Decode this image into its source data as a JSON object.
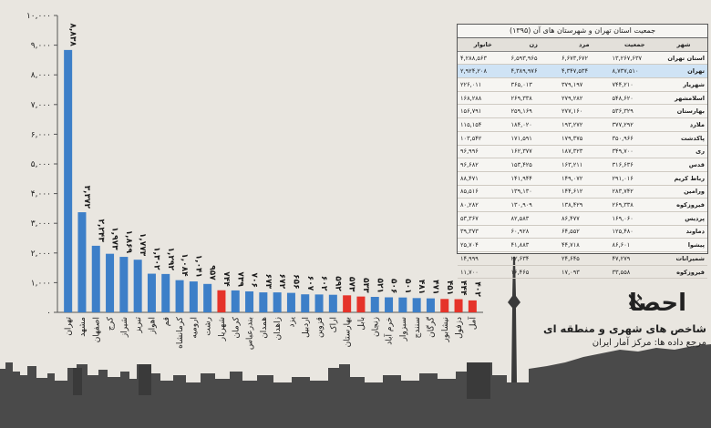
{
  "chart_data": {
    "type": "bar",
    "categories": [
      "تهران",
      "مشهد",
      "اصفهان",
      "کرج",
      "شیراز",
      "تبریز",
      "اهواز",
      "قم",
      "کرمانشاه",
      "ارومیه",
      "رشت",
      "شهریار",
      "کرمان",
      "بندرعباس",
      "همدان",
      "زاهدان",
      "یزد",
      "اردبیل",
      "قزوین",
      "اراک",
      "بهارستان",
      "بابل",
      "زنجان",
      "خرم آباد",
      "سبزوار",
      "سنندج",
      "گرگان",
      "نیشابور",
      "دزفول",
      "آمل"
    ],
    "values": [
      8838,
      3372,
      2243,
      1973,
      1869,
      1773,
      1302,
      1292,
      1084,
      1041,
      957,
      744,
      739,
      706,
      673,
      672,
      656,
      607,
      602,
      592,
      573,
      533,
      521,
      506,
      501,
      481,
      471,
      451,
      444,
      402
    ],
    "value_labels": [
      "۸,۸۳۸",
      "۳,۳۷۲",
      "۲,۲۴۳",
      "۱,۹۷۳",
      "۱,۸۶۹",
      "۱,۷۷۳",
      "۱,۳۰۲",
      "۱,۲۹۲",
      "۱,۰۸۴",
      "۱,۰۴۱",
      "۹۵۷",
      "۷۴۴",
      "۷۳۹",
      "۷۰۶",
      "۶۷۳",
      "۶۷۲",
      "۶۵۶",
      "۶۰۷",
      "۶۰۲",
      "۵۹۲",
      "۵۷۳",
      "۵۳۳",
      "۵۲۱",
      "۵۰۶",
      "۵۰۱",
      "۴۸۱",
      "۴۷۱",
      "۴۵۱",
      "۴۴۴",
      "۴۰۲"
    ],
    "bar_colors": [
      "#3d7fc8",
      "#3d7fc8",
      "#3d7fc8",
      "#3d7fc8",
      "#3d7fc8",
      "#3d7fc8",
      "#3d7fc8",
      "#3d7fc8",
      "#3d7fc8",
      "#3d7fc8",
      "#3d7fc8",
      "#e5332a",
      "#3d7fc8",
      "#3d7fc8",
      "#3d7fc8",
      "#3d7fc8",
      "#3d7fc8",
      "#3d7fc8",
      "#3d7fc8",
      "#3d7fc8",
      "#e5332a",
      "#e5332a",
      "#3d7fc8",
      "#3d7fc8",
      "#3d7fc8",
      "#3d7fc8",
      "#3d7fc8",
      "#e5332a",
      "#e5332a",
      "#e5332a"
    ],
    "yticks": [
      0,
      1000,
      2000,
      3000,
      4000,
      5000,
      6000,
      7000,
      8000,
      9000,
      10000
    ],
    "ytick_labels": [
      "۰",
      "۱,۰۰۰",
      "۲,۰۰۰",
      "۳,۰۰۰",
      "۴,۰۰۰",
      "۵,۰۰۰",
      "۶,۰۰۰",
      "۷,۰۰۰",
      "۸,۰۰۰",
      "۹,۰۰۰",
      "۱۰,۰۰۰"
    ],
    "ylim": [
      0,
      10000
    ],
    "grid": false
  },
  "table": {
    "title": "جمعیت استان تهران و شهرستان های آن (۱۳۹۵)",
    "headers": [
      "شهر",
      "جمعیت",
      "مرد",
      "زن",
      "خانوار"
    ],
    "rows": [
      [
        "استان تهران",
        "۱۳,۲۶۷,۶۳۷",
        "۶,۶۷۳,۶۷۲",
        "۶,۵۹۳,۹۶۵",
        "۴,۲۸۸,۵۶۳"
      ],
      [
        "تهران",
        "۸,۷۳۷,۵۱۰",
        "۴,۳۴۷,۵۳۴",
        "۴,۳۸۹,۹۷۶",
        "۲,۹۲۴,۲۰۸"
      ],
      [
        "شهریار",
        "۷۴۴,۲۱۰",
        "۳۷۹,۱۹۷",
        "۳۶۵,۰۱۳",
        "۲۲۶,۰۱۱"
      ],
      [
        "اسلامشهر",
        "۵۴۸,۶۲۰",
        "۲۷۹,۲۸۲",
        "۲۶۹,۳۳۸",
        "۱۶۸,۲۸۸"
      ],
      [
        "بهارستان",
        "۵۳۶,۳۲۹",
        "۲۷۷,۱۶۰",
        "۲۵۹,۱۶۹",
        "۱۵۶,۷۹۱"
      ],
      [
        "ملارد",
        "۳۷۷,۲۹۲",
        "۱۹۳,۲۷۲",
        "۱۸۴,۰۲۰",
        "۱۱۵,۱۵۴"
      ],
      [
        "پاکدشت",
        "۳۵۰,۹۶۶",
        "۱۷۹,۳۷۵",
        "۱۷۱,۵۹۱",
        "۱۰۳,۵۴۲"
      ],
      [
        "ری",
        "۳۴۹,۷۰۰",
        "۱۸۷,۳۲۳",
        "۱۶۲,۳۷۷",
        "۹۶,۹۹۶"
      ],
      [
        "قدس",
        "۳۱۶,۶۳۶",
        "۱۶۳,۲۱۱",
        "۱۵۳,۴۲۵",
        "۹۶,۶۸۲"
      ],
      [
        "رباط کریم",
        "۲۹۱,۰۱۶",
        "۱۴۹,۰۷۲",
        "۱۴۱,۹۴۴",
        "۸۸,۴۷۱"
      ],
      [
        "ورامین",
        "۲۸۳,۷۴۲",
        "۱۴۴,۶۱۲",
        "۱۳۹,۱۳۰",
        "۸۵,۵۱۶"
      ],
      [
        "فیروزکوه",
        "۲۶۹,۳۳۸",
        "۱۳۸,۴۲۹",
        "۱۳۰,۹۰۹",
        "۸۰,۲۸۲"
      ],
      [
        "پردیس",
        "۱۶۹,۰۶۰",
        "۸۶,۴۷۷",
        "۸۲,۵۸۳",
        "۵۳,۳۶۷"
      ],
      [
        "دماوند",
        "۱۲۵,۴۸۰",
        "۶۴,۵۵۲",
        "۶۰,۹۲۸",
        "۳۹,۳۷۳"
      ],
      [
        "پیشوا",
        "۸۶,۶۰۱",
        "۴۴,۷۱۸",
        "۴۱,۸۸۳",
        "۲۵,۷۰۴"
      ],
      [
        "شمیرانات",
        "۴۷,۲۷۹",
        "۲۴,۶۴۵",
        "۲۲,۶۳۴",
        "۱۴,۹۹۹"
      ],
      [
        "فیروزکوه",
        "۳۳,۵۵۸",
        "۱۷,۰۹۳",
        "۱۶,۴۶۵",
        "۱۱,۷۰۰"
      ]
    ],
    "highlight_row": 1
  },
  "brand": {
    "logo": "احصا",
    "logo_glyph": "ℵ",
    "line1": "شاخص های شهری و منطقه ای",
    "line2": "مرجع داده ها: مرکز آمار ایران"
  }
}
